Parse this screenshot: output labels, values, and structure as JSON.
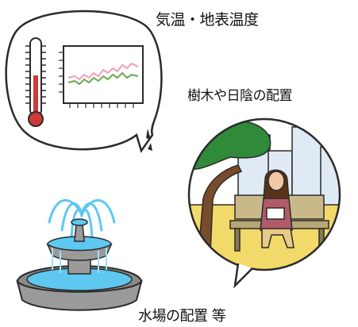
{
  "labels": {
    "temperature": "気温・地表温度",
    "trees": "樹木や日陰の配置",
    "water": "水場の配置 等"
  },
  "colors": {
    "outline": "#2b2b2b",
    "thermometer_red": "#cc3a3a",
    "graph_pink": "#f0a0b8",
    "graph_green": "#6aa84f",
    "sky": "#dfeaf4",
    "lawn": "#f1d96a",
    "tree_green": "#2f8a3a",
    "trunk": "#7a4b2a",
    "water_blue": "#5ec8f0",
    "stone": "#9a9a9a"
  },
  "icons": [
    "thermometer-icon",
    "line-graph-icon",
    "park-bench-scene",
    "fountain-icon"
  ]
}
